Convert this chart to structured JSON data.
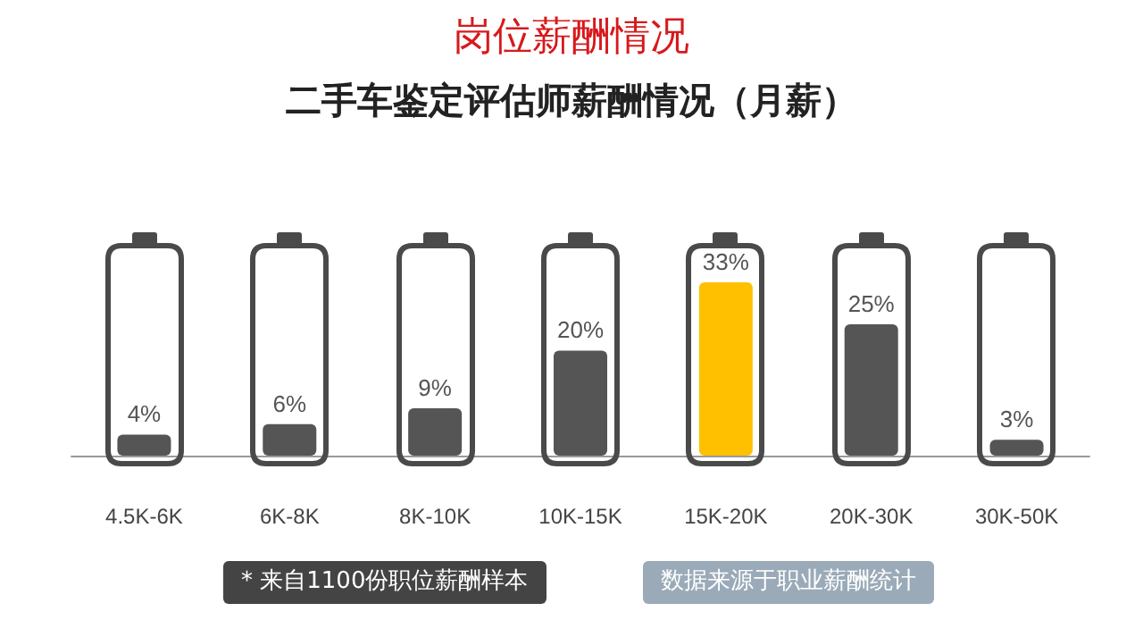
{
  "chart_data": {
    "type": "bar",
    "title": "岗位薪酬情况",
    "subtitle": "二手车鉴定评估师薪酬情况（月薪）",
    "categories": [
      "4.5K-6K",
      "6K-8K",
      "8K-10K",
      "10K-15K",
      "15K-20K",
      "20K-30K",
      "30K-50K"
    ],
    "values": [
      4,
      6,
      9,
      20,
      33,
      25,
      3
    ],
    "colors": [
      "#555555",
      "#555555",
      "#555555",
      "#555555",
      "#ffc000",
      "#555555",
      "#555555"
    ],
    "value_labels": [
      "4%",
      "6%",
      "9%",
      "20%",
      "33%",
      "25%",
      "3%"
    ],
    "annotations": [
      "* 来自1100份职位薪酬样本",
      "数据来源于职业薪酬统计"
    ]
  }
}
